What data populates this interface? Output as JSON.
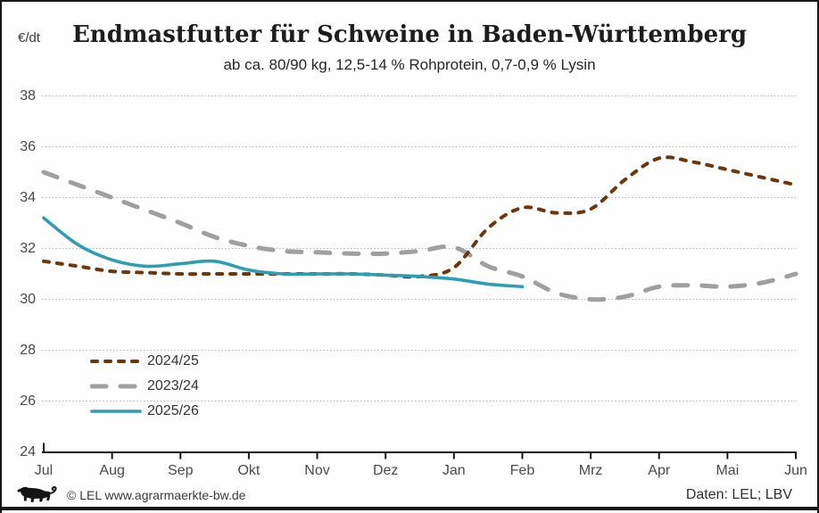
{
  "footer": {
    "copyright": "© LEL www.agrarmaerkte-bw.de",
    "source": "Daten: LEL; LBV",
    "logo": "bw-lion-logo"
  },
  "chart_data": {
    "type": "line",
    "title": "Endmastfutter für Schweine in Baden-Württemberg",
    "subtitle": "ab ca. 80/90 kg, 12,5-14 % Rohprotein, 0,7-0,9 % Lysin",
    "unit": "€/dt",
    "x_categories": [
      "Jul",
      "Aug",
      "Sep",
      "Okt",
      "Nov",
      "Dez",
      "Jan",
      "Feb",
      "Mrz",
      "Apr",
      "Mai",
      "Jun"
    ],
    "y_ticks": [
      38,
      36,
      34,
      32,
      30,
      28,
      26,
      24
    ],
    "ylim": [
      24,
      38
    ],
    "grid": "horizontal-dotted",
    "legend_position": "inside-lower-left",
    "series": [
      {
        "name": "2024/25",
        "color": "#703608",
        "line_style": "dashed-short",
        "x": [
          0,
          0.5,
          1,
          1.5,
          2,
          2.5,
          3,
          3.5,
          4,
          4.5,
          5,
          5.5,
          6,
          6.5,
          7,
          7.5,
          8,
          8.5,
          9,
          9.5,
          10,
          10.5,
          11
        ],
        "values": [
          31.5,
          31.3,
          31.1,
          31.05,
          31.0,
          31.0,
          31.0,
          31.0,
          31.0,
          31.0,
          30.95,
          30.9,
          31.25,
          32.8,
          33.6,
          33.4,
          33.55,
          34.7,
          35.55,
          35.4,
          35.1,
          34.8,
          34.5
        ]
      },
      {
        "name": "2023/24",
        "color": "#9f9f9f",
        "line_style": "dashed-long",
        "x": [
          0,
          0.5,
          1,
          1.5,
          2,
          2.5,
          3,
          3.5,
          4,
          4.5,
          5,
          5.5,
          6,
          6.5,
          7,
          7.5,
          8,
          8.5,
          9,
          9.5,
          10,
          10.5,
          11
        ],
        "values": [
          35.0,
          34.5,
          34.0,
          33.5,
          33.0,
          32.45,
          32.1,
          31.9,
          31.85,
          31.8,
          31.8,
          31.9,
          32.05,
          31.3,
          30.9,
          30.25,
          30.0,
          30.1,
          30.5,
          30.55,
          30.5,
          30.65,
          31.0
        ]
      },
      {
        "name": "2025/26",
        "color": "#2d9eb3",
        "line_style": "solid",
        "x": [
          0,
          0.5,
          1,
          1.5,
          2,
          2.5,
          3,
          3.5,
          4,
          4.5,
          5,
          5.5,
          6,
          6.5,
          7
        ],
        "values": [
          33.2,
          32.15,
          31.55,
          31.3,
          31.4,
          31.5,
          31.15,
          31.0,
          31.0,
          31.0,
          30.95,
          30.9,
          30.8,
          30.6,
          30.5
        ]
      }
    ]
  }
}
